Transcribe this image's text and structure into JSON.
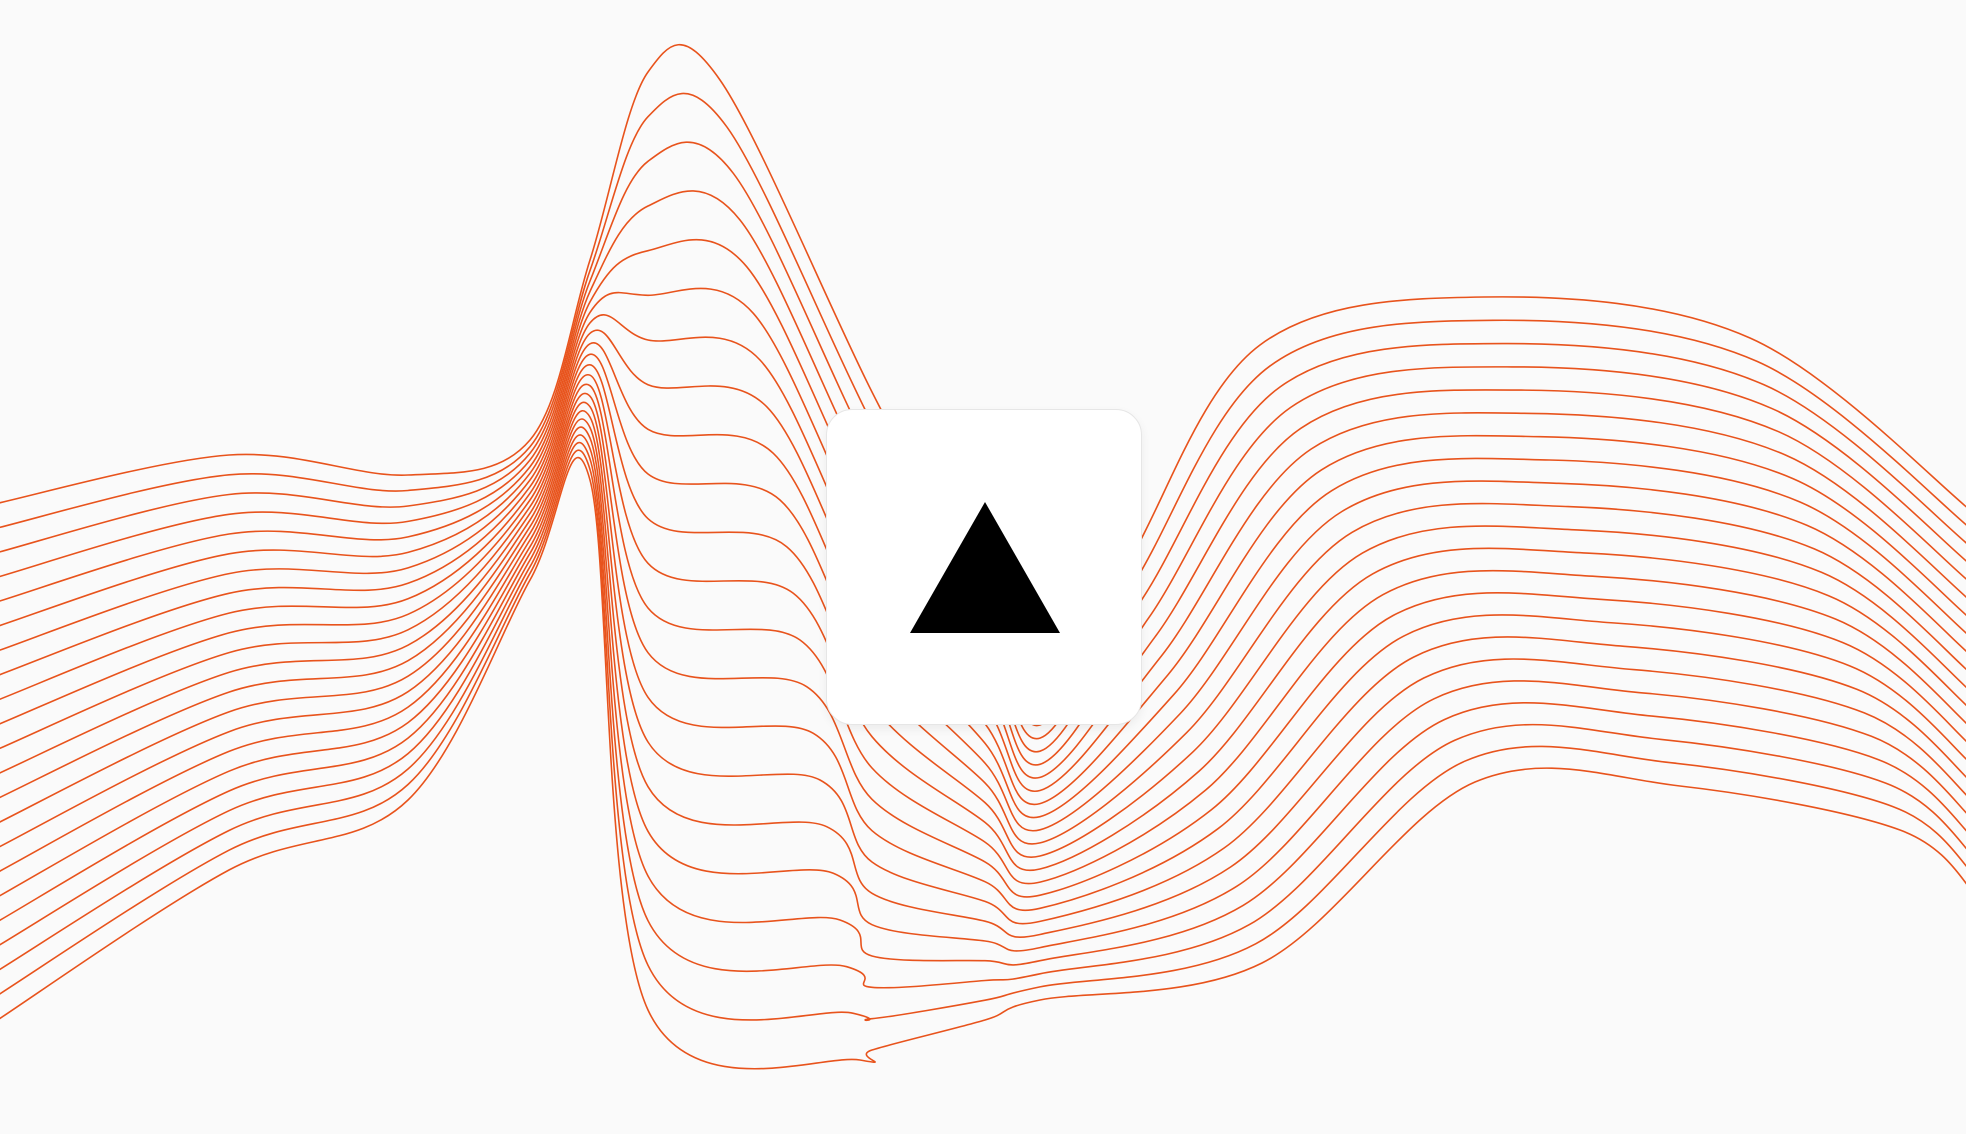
{
  "graphic": {
    "background_color": "#fafafa",
    "wave_color": "#e8531c",
    "wave_line_count": 22
  },
  "logo": {
    "icon": "triangle-logo-icon",
    "shape_color": "#000000",
    "card_color": "#ffffff"
  }
}
